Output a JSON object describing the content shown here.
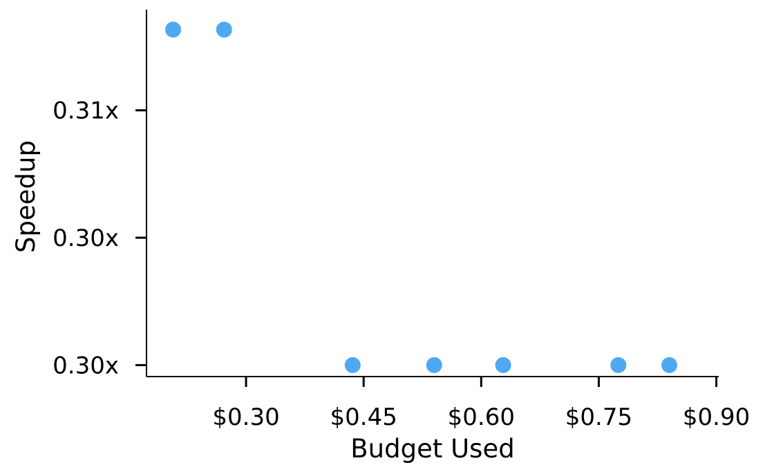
{
  "chart_data": {
    "type": "scatter",
    "title": "",
    "xlabel": "Budget Used",
    "ylabel": "Speedup",
    "xlim": [
      0.173,
      0.903
    ],
    "ylim": [
      0.29826,
      0.31554
    ],
    "grid": false,
    "x_ticks": [
      {
        "value": 0.3,
        "label": "$0.30"
      },
      {
        "value": 0.45,
        "label": "$0.45"
      },
      {
        "value": 0.6,
        "label": "$0.60"
      },
      {
        "value": 0.75,
        "label": "$0.75"
      },
      {
        "value": 0.9,
        "label": "$0.90"
      }
    ],
    "y_ticks": [
      {
        "value": 0.2988,
        "label": "0.30x"
      },
      {
        "value": 0.3048,
        "label": "0.30x"
      },
      {
        "value": 0.3108,
        "label": "0.31x"
      }
    ],
    "series": [
      {
        "color": "#4ea8f2",
        "points": [
          {
            "x": 0.207,
            "y": 0.3146
          },
          {
            "x": 0.272,
            "y": 0.3146
          },
          {
            "x": 0.436,
            "y": 0.2988
          },
          {
            "x": 0.54,
            "y": 0.2988
          },
          {
            "x": 0.628,
            "y": 0.2988
          },
          {
            "x": 0.775,
            "y": 0.2988
          },
          {
            "x": 0.84,
            "y": 0.2988
          }
        ]
      }
    ]
  }
}
